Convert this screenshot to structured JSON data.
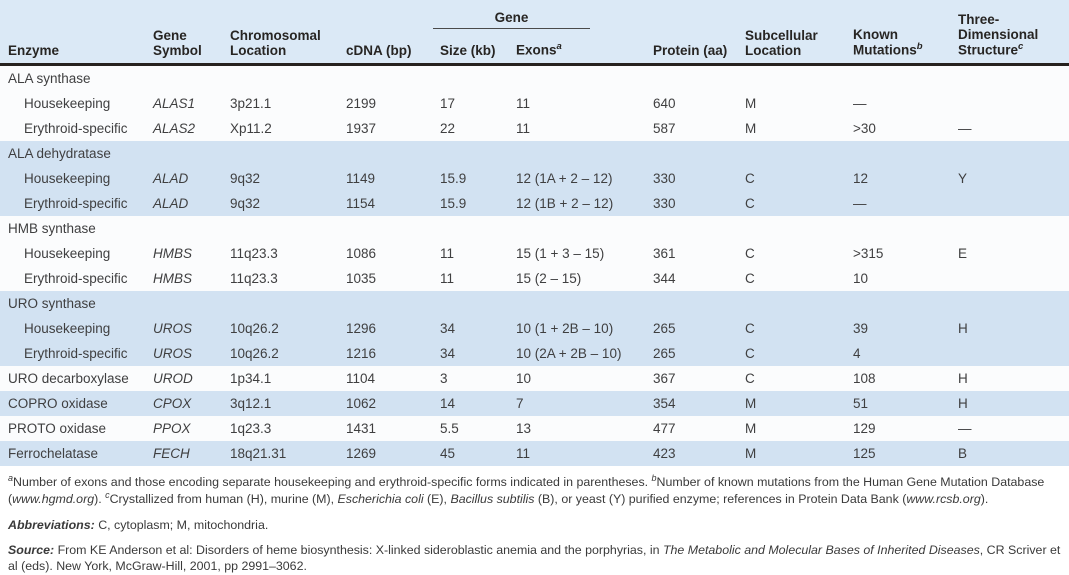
{
  "theme": {
    "header_bg": "#dbe9f6",
    "band_blue": "#d2e2f2",
    "band_white": "#fbfcfd",
    "header_rule": "#26221f",
    "text": "#3f3f40"
  },
  "table": {
    "gene_spanner": "Gene",
    "headers": {
      "enzyme": "Enzyme",
      "gene_symbol": "Gene Symbol",
      "chromosomal_location": "Chromosomal Location",
      "cdna": "cDNA (bp)",
      "size": "Size (kb)",
      "exons": "Exons",
      "exons_sup": "a",
      "protein": "Protein (aa)",
      "subcellular": "Subcellular Location",
      "known_mutations": "Known Mutations",
      "mutations_sup": "b",
      "structure": "Three-Dimensional Structure",
      "structure_sup": "c"
    },
    "rows": [
      {
        "band": "white",
        "group": true,
        "cells": [
          "ALA synthase"
        ]
      },
      {
        "band": "white",
        "indent": true,
        "cells": [
          "Housekeeping",
          "ALAS1",
          "3p21.1",
          "2199",
          "17",
          "11",
          "640",
          "M",
          "—",
          ""
        ]
      },
      {
        "band": "white",
        "indent": true,
        "cells": [
          "Erythroid-specific",
          "ALAS2",
          "Xp11.2",
          "1937",
          "22",
          "11",
          "587",
          "M",
          ">30",
          "—"
        ]
      },
      {
        "band": "blue",
        "group": true,
        "cells": [
          "ALA dehydratase"
        ]
      },
      {
        "band": "blue",
        "indent": true,
        "cells": [
          "Housekeeping",
          "ALAD",
          "9q32",
          "1149",
          "15.9",
          "12 (1A + 2 – 12)",
          "330",
          "C",
          "12",
          "Y"
        ]
      },
      {
        "band": "blue",
        "indent": true,
        "cells": [
          "Erythroid-specific",
          "ALAD",
          "9q32",
          "1154",
          "15.9",
          "12 (1B + 2 – 12)",
          "330",
          "C",
          "—",
          ""
        ]
      },
      {
        "band": "white",
        "group": true,
        "cells": [
          "HMB synthase"
        ]
      },
      {
        "band": "white",
        "indent": true,
        "cells": [
          "Housekeeping",
          "HMBS",
          "11q23.3",
          "1086",
          "11",
          "15 (1 + 3 – 15)",
          "361",
          "C",
          ">315",
          "E"
        ]
      },
      {
        "band": "white",
        "indent": true,
        "cells": [
          "Erythroid-specific",
          "HMBS",
          "11q23.3",
          "1035",
          "11",
          "15 (2 – 15)",
          "344",
          "C",
          "10",
          ""
        ]
      },
      {
        "band": "blue",
        "group": true,
        "cells": [
          "URO synthase"
        ]
      },
      {
        "band": "blue",
        "indent": true,
        "cells": [
          "Housekeeping",
          "UROS",
          "10q26.2",
          "1296",
          "34",
          "10 (1 + 2B – 10)",
          "265",
          "C",
          "39",
          "H"
        ]
      },
      {
        "band": "blue",
        "indent": true,
        "cells": [
          "Erythroid-specific",
          "UROS",
          "10q26.2",
          "1216",
          "34",
          "10 (2A + 2B – 10)",
          "265",
          "C",
          "4",
          ""
        ]
      },
      {
        "band": "white",
        "cells": [
          "URO decarboxylase",
          "UROD",
          "1p34.1",
          "1104",
          "3",
          "10",
          "367",
          "C",
          "108",
          "H"
        ]
      },
      {
        "band": "blue",
        "cells": [
          "COPRO oxidase",
          "CPOX",
          "3q12.1",
          "1062",
          "14",
          "7",
          "354",
          "M",
          "51",
          "H"
        ]
      },
      {
        "band": "white",
        "cells": [
          "PROTO oxidase",
          "PPOX",
          "1q23.3",
          "1431",
          "5.5",
          "13",
          "477",
          "M",
          "129",
          "—"
        ]
      },
      {
        "band": "blue",
        "cells": [
          "Ferrochelatase",
          "FECH",
          "18q21.31",
          "1269",
          "45",
          "11",
          "423",
          "M",
          "125",
          "B"
        ]
      }
    ]
  },
  "footnotes": [
    {
      "name": "footnote-abc",
      "segments": [
        {
          "sup": "a"
        },
        {
          "text": "Number of exons and those encoding separate housekeeping and erythroid-specific forms indicated in parentheses.  "
        },
        {
          "sup": "b"
        },
        {
          "text": "Number of known mutations from the Human Gene Mutation Database ("
        },
        {
          "text": "www.hgmd.org",
          "italic": true
        },
        {
          "text": ").  "
        },
        {
          "sup": "c"
        },
        {
          "text": "Crystallized from human (H), murine (M), "
        },
        {
          "text": "Escherichia coli",
          "italic": true
        },
        {
          "text": " (E), "
        },
        {
          "text": "Bacillus subtilis",
          "italic": true
        },
        {
          "text": " (B), or yeast (Y) purified enzyme; references in Protein Data Bank ("
        },
        {
          "text": "www.rcsb.org",
          "italic": true
        },
        {
          "text": ")."
        }
      ]
    },
    {
      "name": "footnote-abbreviations",
      "segments": [
        {
          "text": "Abbreviations:",
          "bold": true,
          "italic": true
        },
        {
          "text": " C, cytoplasm; M, mitochondria."
        }
      ]
    },
    {
      "name": "footnote-source",
      "segments": [
        {
          "text": "Source:",
          "bold": true,
          "italic": true
        },
        {
          "text": " From KE Anderson et al: Disorders of heme biosynthesis: X-linked sideroblastic anemia and the porphyrias, in "
        },
        {
          "text": "The Metabolic and Molecular Bases of Inherited Diseases",
          "italic": true
        },
        {
          "text": ", CR Scriver et al (eds). New York, McGraw-Hill, 2001, pp 2991–3062."
        }
      ]
    }
  ]
}
